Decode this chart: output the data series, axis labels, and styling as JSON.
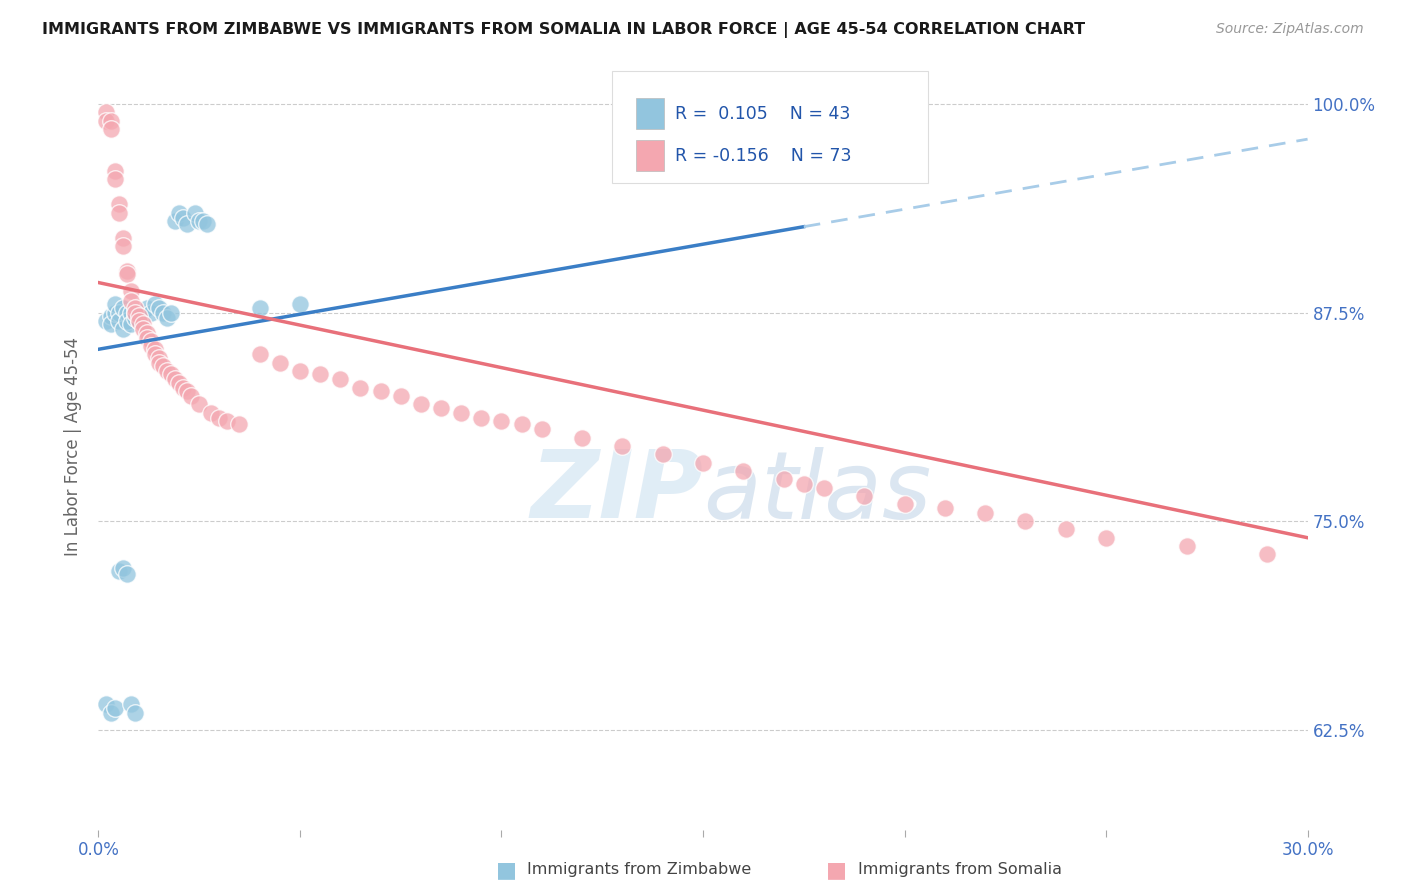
{
  "title": "IMMIGRANTS FROM ZIMBABWE VS IMMIGRANTS FROM SOMALIA IN LABOR FORCE | AGE 45-54 CORRELATION CHART",
  "source": "Source: ZipAtlas.com",
  "ylabel": "In Labor Force | Age 45-54",
  "xlim": [
    0.0,
    0.3
  ],
  "ylim": [
    0.565,
    1.025
  ],
  "yticks": [
    0.625,
    0.75,
    0.875,
    1.0
  ],
  "ytick_labels": [
    "62.5%",
    "75.0%",
    "87.5%",
    "100.0%"
  ],
  "color_zimbabwe": "#92c5de",
  "color_somalia": "#f4a7b0",
  "color_trendline_zimbabwe_solid": "#3a7ec6",
  "color_trendline_zimbabwe_dashed": "#a8cce8",
  "color_trendline_somalia": "#e8707a",
  "watermark_zip": "ZIP",
  "watermark_atlas": "atlas",
  "zim_intercept": 0.853,
  "zim_slope": 0.42,
  "som_intercept": 0.888,
  "som_slope": -0.28,
  "zim_x": [
    0.002,
    0.003,
    0.003,
    0.004,
    0.004,
    0.005,
    0.005,
    0.006,
    0.006,
    0.007,
    0.007,
    0.008,
    0.008,
    0.009,
    0.009,
    0.01,
    0.01,
    0.011,
    0.012,
    0.013,
    0.014,
    0.015,
    0.016,
    0.017,
    0.018,
    0.019,
    0.02,
    0.021,
    0.022,
    0.024,
    0.025,
    0.026,
    0.027,
    0.04,
    0.05,
    0.002,
    0.003,
    0.004,
    0.005,
    0.006,
    0.007,
    0.008,
    0.009
  ],
  "zim_y": [
    0.87,
    0.873,
    0.868,
    0.875,
    0.88,
    0.875,
    0.87,
    0.878,
    0.865,
    0.875,
    0.87,
    0.875,
    0.868,
    0.875,
    0.872,
    0.875,
    0.87,
    0.875,
    0.878,
    0.875,
    0.88,
    0.878,
    0.875,
    0.872,
    0.875,
    0.93,
    0.935,
    0.932,
    0.928,
    0.935,
    0.93,
    0.93,
    0.928,
    0.878,
    0.88,
    0.64,
    0.635,
    0.638,
    0.72,
    0.722,
    0.718,
    0.64,
    0.635
  ],
  "som_x": [
    0.002,
    0.002,
    0.003,
    0.003,
    0.004,
    0.004,
    0.005,
    0.005,
    0.006,
    0.006,
    0.007,
    0.007,
    0.008,
    0.008,
    0.009,
    0.009,
    0.01,
    0.01,
    0.011,
    0.011,
    0.012,
    0.012,
    0.013,
    0.013,
    0.014,
    0.014,
    0.015,
    0.015,
    0.016,
    0.017,
    0.018,
    0.019,
    0.02,
    0.021,
    0.022,
    0.023,
    0.025,
    0.028,
    0.03,
    0.032,
    0.035,
    0.04,
    0.045,
    0.05,
    0.055,
    0.06,
    0.065,
    0.07,
    0.075,
    0.08,
    0.085,
    0.09,
    0.095,
    0.1,
    0.105,
    0.11,
    0.12,
    0.13,
    0.14,
    0.15,
    0.16,
    0.17,
    0.175,
    0.18,
    0.19,
    0.2,
    0.21,
    0.22,
    0.23,
    0.24,
    0.25,
    0.27,
    0.29
  ],
  "som_y": [
    0.995,
    0.99,
    0.99,
    0.985,
    0.96,
    0.955,
    0.94,
    0.935,
    0.92,
    0.915,
    0.9,
    0.898,
    0.888,
    0.882,
    0.878,
    0.875,
    0.873,
    0.87,
    0.868,
    0.865,
    0.863,
    0.86,
    0.858,
    0.855,
    0.853,
    0.85,
    0.848,
    0.845,
    0.843,
    0.84,
    0.838,
    0.835,
    0.833,
    0.83,
    0.828,
    0.825,
    0.82,
    0.815,
    0.812,
    0.81,
    0.808,
    0.85,
    0.845,
    0.84,
    0.838,
    0.835,
    0.83,
    0.828,
    0.825,
    0.82,
    0.818,
    0.815,
    0.812,
    0.81,
    0.808,
    0.805,
    0.8,
    0.795,
    0.79,
    0.785,
    0.78,
    0.775,
    0.772,
    0.77,
    0.765,
    0.76,
    0.758,
    0.755,
    0.75,
    0.745,
    0.74,
    0.735,
    0.73
  ]
}
